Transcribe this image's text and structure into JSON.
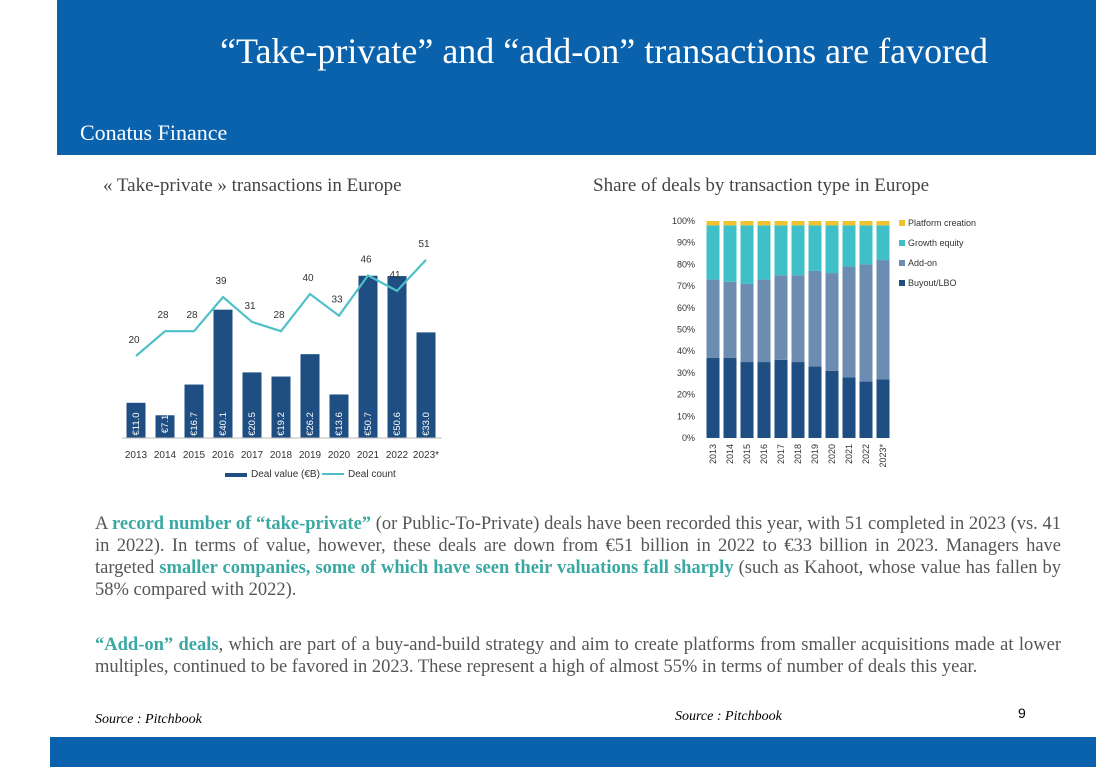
{
  "header": {
    "title": "“Take-private” and “add-on” transactions are favored",
    "brand": "Conatus Finance"
  },
  "left_chart_title": "« Take-private » transactions in Europe",
  "right_chart_title": "Share of deals by transaction type in Europe",
  "paragraph1": {
    "p1": "A ",
    "h1": "record number of “take-private”",
    "p2": " (or Public-To-Private) deals have been recorded this year, with 51 completed in 2023 (vs. 41 in 2022). In terms of value, however, these deals are down from €51 billion in 2022 to €33 billion in 2023. Managers have targeted ",
    "h2": "smaller companies, some of which have seen their valuations fall sharply",
    "p3": " (such as Kahoot, whose value has fallen by 58% compared with 2022)."
  },
  "paragraph2": {
    "h1": "“Add-on” deals",
    "p1": ", which are part of a buy-and-build strategy and aim to create platforms from smaller acquisitions made at lower multiples, continued to be favored in 2023. These represent a high of almost 55% in terms of number of deals this year."
  },
  "source_left": "Source : Pitchbook",
  "source_right": "Source : Pitchbook",
  "page_number": "9",
  "colors": {
    "header_blue": "#0a62ad",
    "bar_navy": "#1f4e82",
    "line_teal": "#4fc0c8",
    "buyout": "#1f4e82",
    "addon": "#6d8cb2",
    "growth": "#3fc0c8",
    "platform": "#f2c12e",
    "highlight": "#3aa8a3"
  },
  "chart_data": [
    {
      "type": "bar",
      "categories": [
        "2013",
        "2014",
        "2015",
        "2016",
        "2017",
        "2018",
        "2019",
        "2020",
        "2021",
        "2022",
        "2023*"
      ],
      "series": [
        {
          "name": "Deal value (€B)",
          "values": [
            11.0,
            7.1,
            16.7,
            40.1,
            20.5,
            19.2,
            26.2,
            13.6,
            50.7,
            50.6,
            33.0
          ],
          "labels": [
            "€11.0",
            "€7.1",
            "€16.7",
            "€40.1",
            "€20.5",
            "€19.2",
            "€26.2",
            "€13.6",
            "€50.7",
            "€50.6",
            "€33.0"
          ]
        },
        {
          "name": "Deal count",
          "type": "line",
          "values": [
            20,
            28,
            28,
            39,
            31,
            28,
            40,
            33,
            46,
            41,
            51
          ]
        }
      ],
      "legend": "bottom"
    },
    {
      "type": "bar",
      "stacked": true,
      "categories": [
        "2013",
        "2014",
        "2015",
        "2016",
        "2017",
        "2018",
        "2019",
        "2020",
        "2021",
        "2022",
        "2023*"
      ],
      "series": [
        {
          "name": "Buyout/LBO",
          "values": [
            37,
            37,
            35,
            35,
            36,
            35,
            33,
            31,
            28,
            26,
            27
          ]
        },
        {
          "name": "Add-on",
          "values": [
            36,
            35,
            36,
            38,
            39,
            40,
            44,
            45,
            51,
            54,
            55
          ]
        },
        {
          "name": "Growth equity",
          "values": [
            25,
            26,
            27,
            25,
            23,
            23,
            21,
            22,
            19,
            18,
            16
          ]
        },
        {
          "name": "Platform creation",
          "values": [
            2,
            2,
            2,
            2,
            2,
            2,
            2,
            2,
            2,
            2,
            2
          ]
        }
      ],
      "ylim": [
        0,
        100
      ],
      "yticks": [
        "0%",
        "10%",
        "20%",
        "30%",
        "40%",
        "50%",
        "60%",
        "70%",
        "80%",
        "90%",
        "100%"
      ],
      "legend": "right"
    }
  ]
}
